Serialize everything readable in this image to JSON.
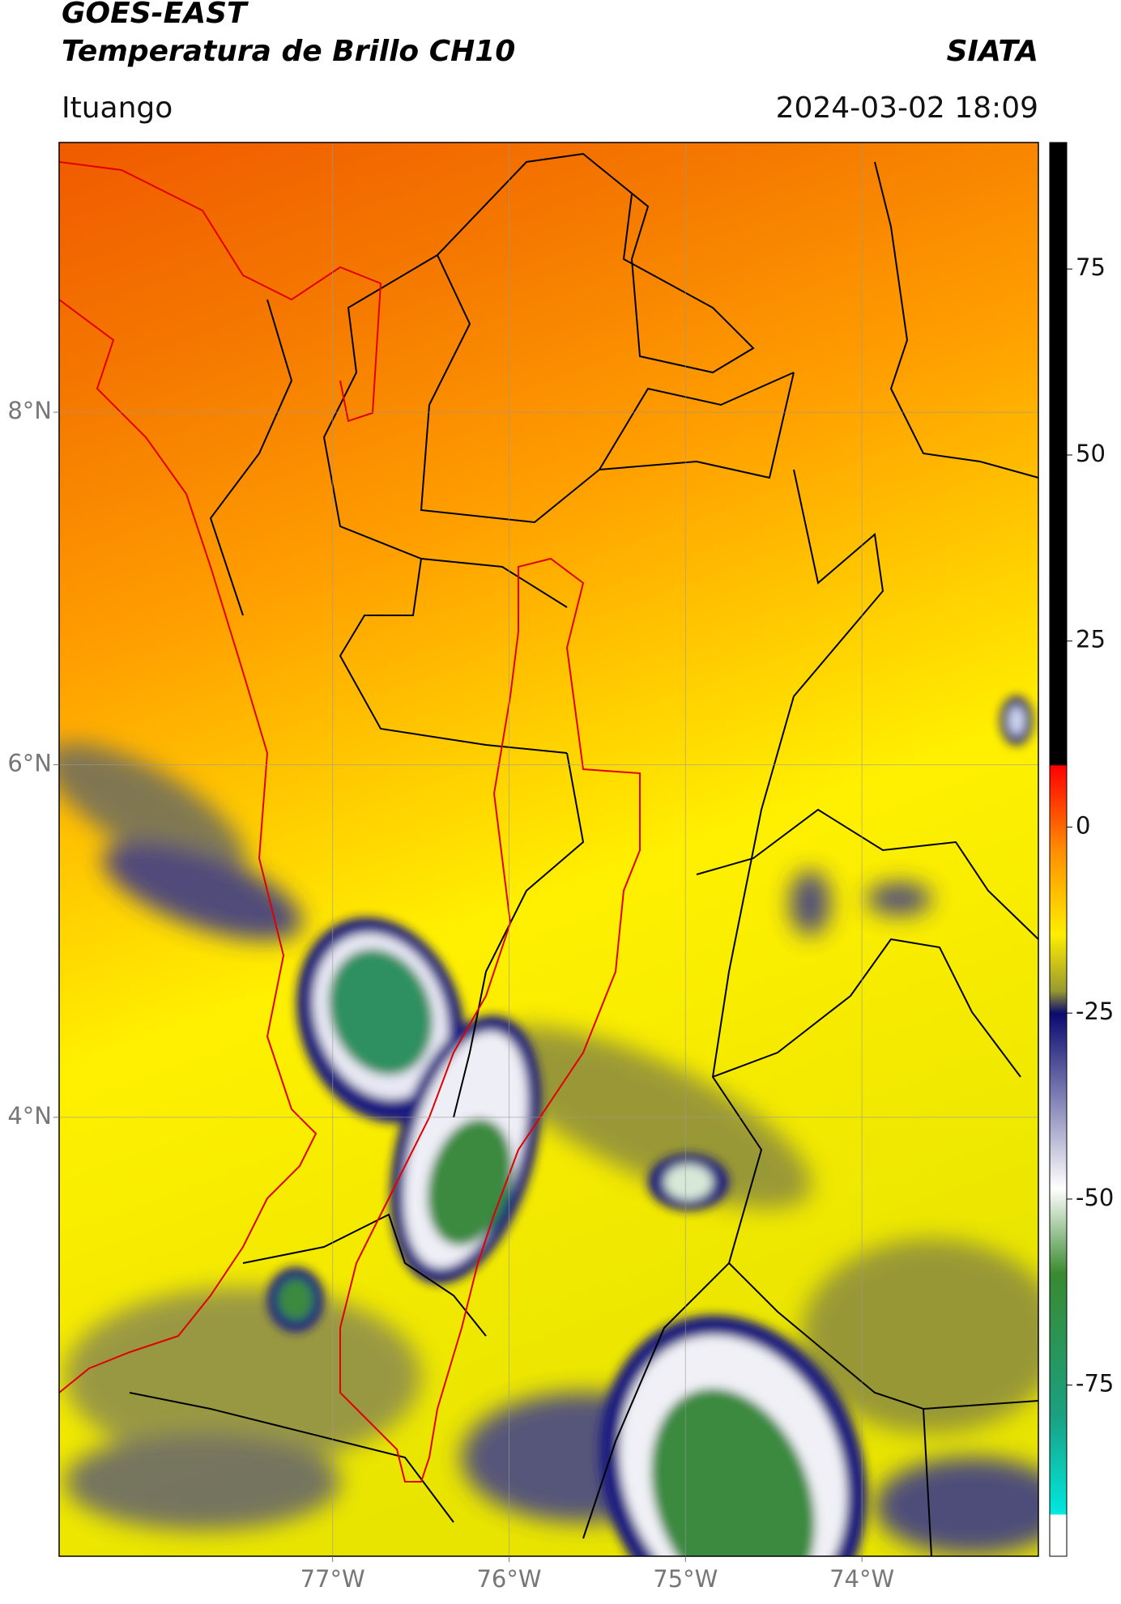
{
  "header": {
    "title": "GOES-EAST",
    "subtitle": "Temperatura de Brillo CH10",
    "brand": "SIATA",
    "location": "Ituango",
    "datetime": "2024-03-02 18:09"
  },
  "map": {
    "xlim": [
      -78.55,
      -73.0
    ],
    "ylim": [
      1.51,
      9.53
    ],
    "xticks": [
      {
        "value": -77,
        "label": "77°W"
      },
      {
        "value": -76,
        "label": "76°W"
      },
      {
        "value": -75,
        "label": "75°W"
      },
      {
        "value": -74,
        "label": "74°W"
      }
    ],
    "yticks": [
      {
        "value": 8,
        "label": "8°N"
      },
      {
        "value": 6,
        "label": "6°N"
      },
      {
        "value": 4,
        "label": "4°N"
      }
    ],
    "grid": true
  },
  "colorbar": {
    "lim": [
      -98,
      92
    ],
    "ticks": [
      75,
      50,
      25,
      0,
      -25,
      -50,
      -75
    ]
  }
}
